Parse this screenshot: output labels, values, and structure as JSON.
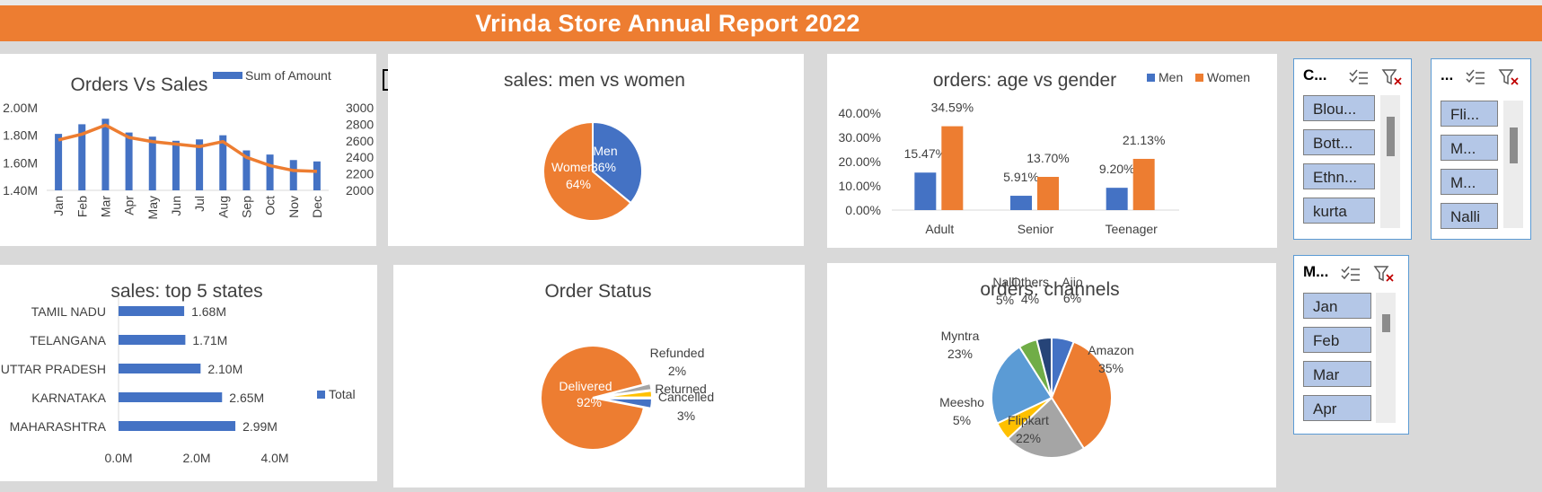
{
  "report_title": "Vrinda Store Annual Report 2022",
  "chart_data": [
    {
      "type": "bar",
      "id": "orders-vs-sales",
      "title": "Orders Vs Sales",
      "categories": [
        "Jan",
        "Feb",
        "Mar",
        "Apr",
        "May",
        "Jun",
        "Jul",
        "Aug",
        "Sep",
        "Oct",
        "Nov",
        "Dec"
      ],
      "series": [
        {
          "name": "Sum of Amount",
          "type": "bar",
          "values": [
            1.81,
            1.88,
            1.92,
            1.82,
            1.79,
            1.76,
            1.77,
            1.8,
            1.69,
            1.66,
            1.62,
            1.61
          ]
        },
        {
          "type": "line",
          "values": [
            2610,
            2680,
            2790,
            2640,
            2590,
            2560,
            2530,
            2590,
            2400,
            2300,
            2240,
            2230
          ]
        }
      ],
      "y_left": {
        "ylim": [
          1.4,
          2.0
        ],
        "ticks": [
          "1.40M",
          "1.60M",
          "1.80M",
          "2.00M"
        ]
      },
      "y_right": {
        "ylim": [
          2000,
          3000
        ],
        "ticks": [
          "2000",
          "2200",
          "2400",
          "2600",
          "2800",
          "3000"
        ]
      },
      "legend": "top-right"
    },
    {
      "type": "pie",
      "id": "sales-men-vs-women",
      "title": "sales: men vs women",
      "slices": [
        {
          "label": "Men",
          "value": 36,
          "pct_label": "36%",
          "color": "#4472c4"
        },
        {
          "label": "Women",
          "value": 64,
          "pct_label": "64%",
          "color": "#ed7d31"
        }
      ]
    },
    {
      "type": "bar",
      "id": "orders-age-vs-gender",
      "title": "orders: age vs gender",
      "categories": [
        "Adult",
        "Senior",
        "Teenager"
      ],
      "series": [
        {
          "name": "Men",
          "color": "#4472c4",
          "values": [
            15.47,
            5.91,
            9.2
          ],
          "labels": [
            "15.47%",
            "5.91%",
            "9.20%"
          ]
        },
        {
          "name": "Women",
          "color": "#ed7d31",
          "values": [
            34.59,
            13.7,
            21.13
          ],
          "labels": [
            "34.59%",
            "13.70%",
            "21.13%"
          ]
        }
      ],
      "ylim": [
        0,
        40
      ],
      "ticks": [
        "0.00%",
        "10.00%",
        "20.00%",
        "30.00%",
        "40.00%"
      ],
      "legend": "top-right"
    },
    {
      "type": "bar",
      "orientation": "horizontal",
      "id": "sales-top-5-states",
      "title": "sales: top 5 states",
      "categories": [
        "TAMIL NADU",
        "TELANGANA",
        "UTTAR PRADESH",
        "KARNATAKA",
        "MAHARASHTRA"
      ],
      "series": [
        {
          "name": "Total",
          "values": [
            1.68,
            1.71,
            2.1,
            2.65,
            2.99
          ],
          "labels": [
            "1.68M",
            "1.71M",
            "2.10M",
            "2.65M",
            "2.99M"
          ]
        }
      ],
      "xlim": [
        0,
        4
      ],
      "ticks": [
        "0.0M",
        "2.0M",
        "4.0M"
      ],
      "legend": "right"
    },
    {
      "type": "pie",
      "id": "order-status",
      "title": "Order Status",
      "slices": [
        {
          "label": "Delivered",
          "value": 92,
          "pct_label": "92%",
          "color": "#ed7d31"
        },
        {
          "label": "Refunded",
          "value": 2,
          "pct_label": "2%",
          "color": "#a5a5a5"
        },
        {
          "label": "Returned",
          "value": 2,
          "pct_label": "",
          "color": "#ffc000"
        },
        {
          "label": "Cancelled",
          "value": 3,
          "pct_label": "3%",
          "color": "#4472c4"
        }
      ]
    },
    {
      "type": "pie",
      "id": "orders-channels",
      "title": "orders: channels",
      "slices": [
        {
          "label": "Ajio",
          "value": 6,
          "pct_label": "6%",
          "color": "#4472c4"
        },
        {
          "label": "Amazon",
          "value": 35,
          "pct_label": "35%",
          "color": "#ed7d31"
        },
        {
          "label": "Flipkart",
          "value": 22,
          "pct_label": "22%",
          "color": "#a5a5a5"
        },
        {
          "label": "Meesho",
          "value": 5,
          "pct_label": "5%",
          "color": "#ffc000"
        },
        {
          "label": "Myntra",
          "value": 23,
          "pct_label": "23%",
          "color": "#5b9bd5"
        },
        {
          "label": "Nalli",
          "value": 5,
          "pct_label": "5%",
          "color": "#70ad47"
        },
        {
          "label": "Others",
          "value": 4,
          "pct_label": "4%",
          "color": "#264478"
        }
      ]
    }
  ],
  "slicers": [
    {
      "title": "C...",
      "items": [
        "Blou...",
        "Bott...",
        "Ethn...",
        "kurta"
      ]
    },
    {
      "title": "...",
      "items": [
        "Fli...",
        "M...",
        "M...",
        "Nalli"
      ]
    },
    {
      "title": "M...",
      "items": [
        "Jan",
        "Feb",
        "Mar",
        "Apr"
      ]
    }
  ],
  "colors": {
    "accent": "#ed7d31",
    "blue": "#4472c4",
    "slicer_item": "#b4c7e7",
    "slicer_border": "#5b9bd5"
  }
}
